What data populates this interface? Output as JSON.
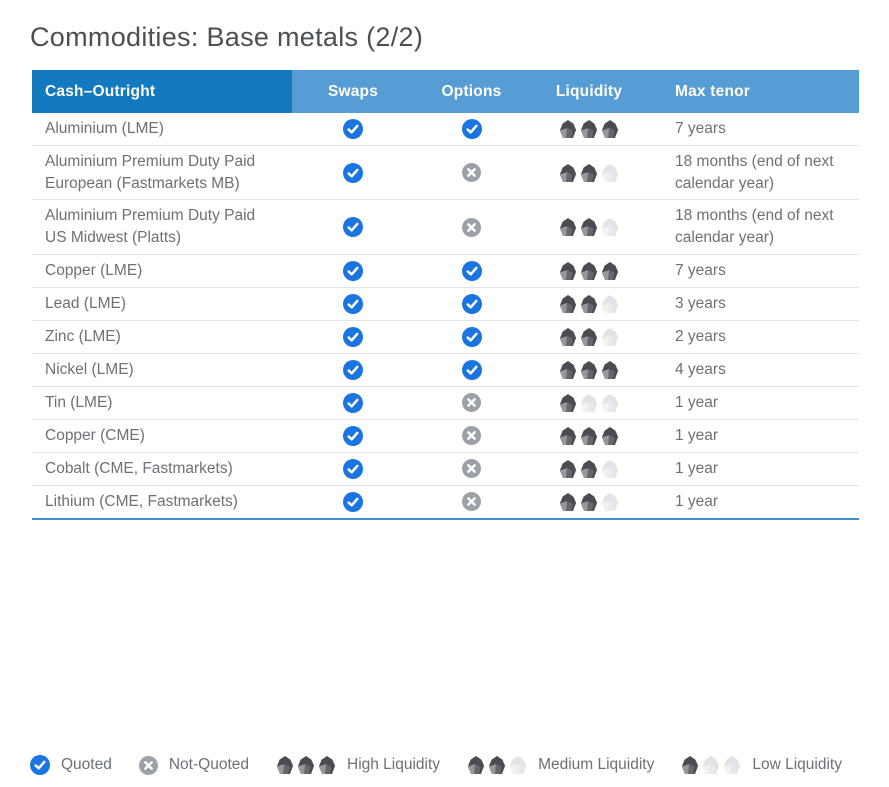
{
  "page": {
    "title": "Commodities: Base metals (2/2)"
  },
  "table": {
    "columns": [
      {
        "key": "name",
        "label": "Cash–Outright"
      },
      {
        "key": "swaps",
        "label": "Swaps"
      },
      {
        "key": "options",
        "label": "Options"
      },
      {
        "key": "liquidity",
        "label": "Liquidity"
      },
      {
        "key": "max_tenor",
        "label": "Max tenor"
      }
    ],
    "rows": [
      {
        "name": "Aluminium (LME)",
        "swaps": "quoted",
        "options": "quoted",
        "liquidity": "high",
        "max_tenor": "7 years"
      },
      {
        "name": "Aluminium Premium Duty Paid European (Fastmarkets MB)",
        "swaps": "quoted",
        "options": "not-quoted",
        "liquidity": "medium",
        "max_tenor": "18 months (end of next calendar year)"
      },
      {
        "name": "Aluminium Premium Duty Paid US Midwest (Platts)",
        "swaps": "quoted",
        "options": "not-quoted",
        "liquidity": "medium",
        "max_tenor": "18 months (end of next calendar year)"
      },
      {
        "name": "Copper (LME)",
        "swaps": "quoted",
        "options": "quoted",
        "liquidity": "high",
        "max_tenor": "7 years"
      },
      {
        "name": "Lead (LME)",
        "swaps": "quoted",
        "options": "quoted",
        "liquidity": "medium",
        "max_tenor": "3 years"
      },
      {
        "name": "Zinc (LME)",
        "swaps": "quoted",
        "options": "quoted",
        "liquidity": "medium",
        "max_tenor": "2 years"
      },
      {
        "name": "Nickel (LME)",
        "swaps": "quoted",
        "options": "quoted",
        "liquidity": "high",
        "max_tenor": "4 years"
      },
      {
        "name": "Tin (LME)",
        "swaps": "quoted",
        "options": "not-quoted",
        "liquidity": "low",
        "max_tenor": "1 year"
      },
      {
        "name": "Copper (CME)",
        "swaps": "quoted",
        "options": "not-quoted",
        "liquidity": "high",
        "max_tenor": "1 year"
      },
      {
        "name": "Cobalt (CME, Fastmarkets)",
        "swaps": "quoted",
        "options": "not-quoted",
        "liquidity": "medium",
        "max_tenor": "1 year"
      },
      {
        "name": "Lithium (CME, Fastmarkets)",
        "swaps": "quoted",
        "options": "not-quoted",
        "liquidity": "medium",
        "max_tenor": "1 year"
      }
    ]
  },
  "legend": {
    "items": [
      {
        "icon": "quoted",
        "label": "Quoted"
      },
      {
        "icon": "not-quoted",
        "label": "Not-Quoted"
      },
      {
        "icon": "liquidity-high",
        "label": "High Liquidity"
      },
      {
        "icon": "liquidity-medium",
        "label": "Medium Liquidity"
      },
      {
        "icon": "liquidity-low",
        "label": "Low Liquidity"
      }
    ]
  },
  "liquidity_levels": {
    "high": 3,
    "medium": 2,
    "low": 1
  },
  "colors": {
    "header_primary": "#137ac0",
    "header_secondary": "#579dd5",
    "quoted": "#1b75e0",
    "not_quoted": "#9ba1a6",
    "gem_dark": "#4b4c51",
    "gem_facet_dark1": "#97989c",
    "gem_facet_dark2": "#66676c",
    "gem_light": "#e2e3e6",
    "gem_facet_light1": "#f1f2f4",
    "gem_facet_light2": "#e9eaec",
    "table_bottom_border": "#4090cc"
  }
}
